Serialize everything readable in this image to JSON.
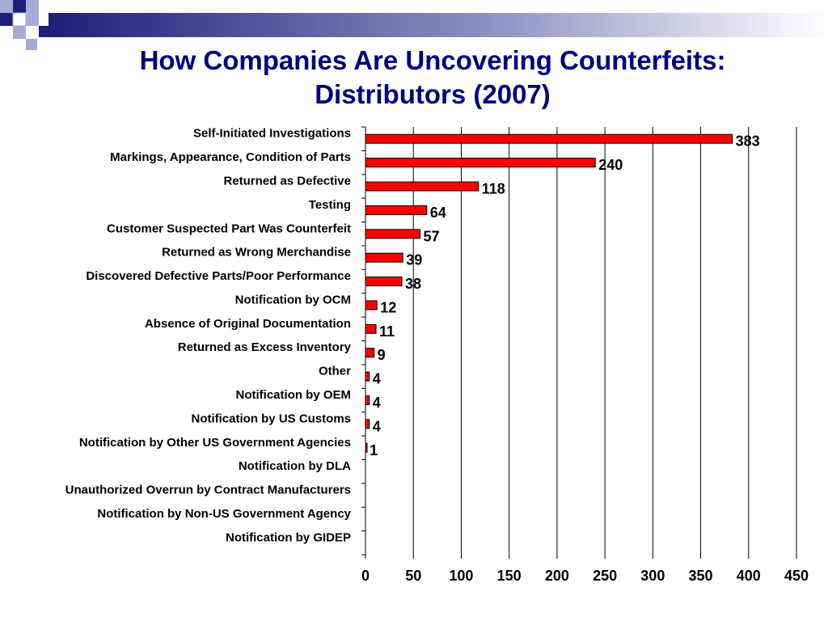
{
  "slide": {
    "title_line1": "How Companies Are Uncovering Counterfeits:",
    "title_line2": "Distributors (2007)",
    "colors": {
      "title": "#000080",
      "bar": "#FF0000",
      "deco_dark": "#1F1F7A",
      "deco_light": "#A9A9D6"
    }
  },
  "chart_data": {
    "type": "bar",
    "orientation": "horizontal",
    "categories": [
      "Self-Initiated Investigations",
      "Markings, Appearance, Condition of Parts",
      "Returned as Defective",
      "Testing",
      "Customer Suspected Part Was Counterfeit",
      "Returned as Wrong Merchandise",
      "Discovered Defective Parts/Poor Performance",
      "Notification by OCM",
      "Absence of Original Documentation",
      "Returned as Excess Inventory",
      "Other",
      "Notification by OEM",
      "Notification by US Customs",
      "Notification by Other US Government Agencies",
      "Notification by DLA",
      "Unauthorized Overrun by Contract Manufacturers",
      "Notification by Non-US Government Agency",
      "Notification by GIDEP"
    ],
    "values": [
      383,
      240,
      118,
      64,
      57,
      39,
      38,
      12,
      11,
      9,
      4,
      4,
      4,
      1,
      null,
      null,
      null,
      null
    ],
    "data_labels": [
      "383",
      "240",
      "118",
      "64",
      "57",
      "39",
      "38",
      "12",
      "11",
      "9",
      "4",
      "4",
      "4",
      "1",
      "",
      "",
      "",
      ""
    ],
    "xlim": [
      0,
      450
    ],
    "xticks": [
      0,
      50,
      100,
      150,
      200,
      250,
      300,
      350,
      400,
      450
    ],
    "xtick_labels": [
      "0",
      "50",
      "100",
      "150",
      "200",
      "250",
      "300",
      "350",
      "400",
      "450"
    ],
    "grid": "vertical",
    "legend": "none",
    "bar_color": "#FF0000"
  }
}
